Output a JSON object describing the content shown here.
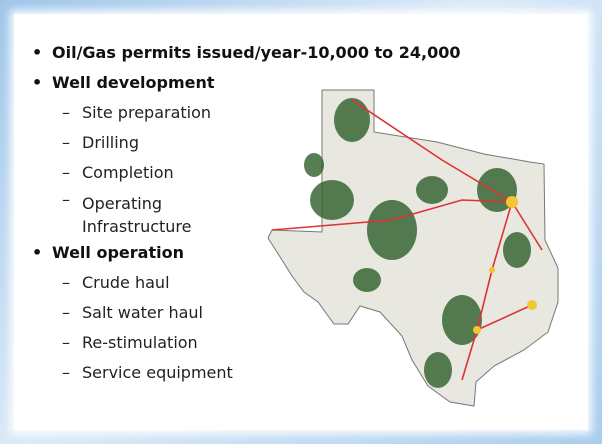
{
  "bullets": [
    {
      "text": "Oil/Gas permits issued/year-10,000 to 24,000",
      "subitems": []
    },
    {
      "text": "Well development",
      "subitems": [
        "Site preparation",
        "Drilling",
        "Completion",
        "Operating Infrastructure"
      ]
    },
    {
      "text": "Well operation",
      "subitems": [
        "Crude haul",
        "Salt water haul",
        "Re-stimulation",
        "Service equipment"
      ]
    }
  ]
}
